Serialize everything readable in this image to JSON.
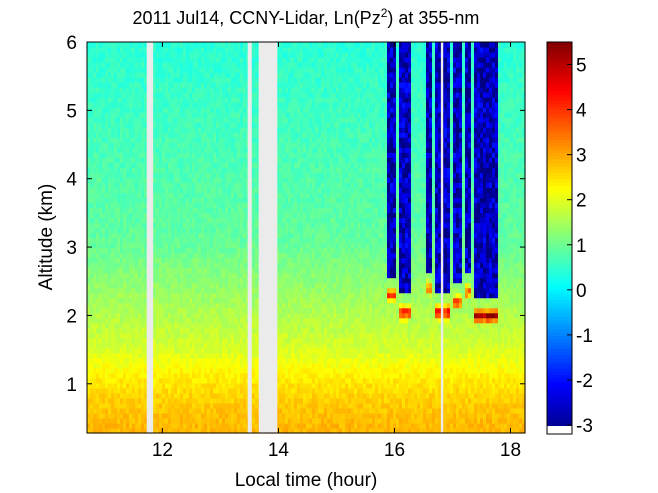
{
  "chart_data": {
    "type": "heatmap",
    "title": {
      "prefix": "2011 Jul14, CCNY-Lidar, Ln(Pz",
      "superscript": "2",
      "suffix": ") at 355-nm"
    },
    "xlabel": "Local time (hour)",
    "ylabel": "Altitude (km)",
    "xlim": [
      10.7,
      18.25
    ],
    "ylim": [
      0.28,
      6.0
    ],
    "x_ticks": [
      12,
      14,
      16,
      18
    ],
    "y_ticks": [
      1,
      2,
      3,
      4,
      5,
      6
    ],
    "colorbar": {
      "min": -3.2,
      "max": 5.5,
      "ticks": [
        -3,
        -2,
        -1,
        0,
        1,
        2,
        3,
        4,
        5
      ],
      "colormap": "jet",
      "nodata_color": "#ffffff"
    },
    "data_gaps_hours": [
      [
        11.73,
        11.84
      ],
      [
        13.47,
        13.54
      ],
      [
        13.66,
        13.98
      ],
      [
        16.8,
        16.84
      ]
    ],
    "nodata_color": "#ebebeb",
    "field": {
      "surface_value": 2.9,
      "free_troposphere_value": 0.9,
      "upper_value": 0.4,
      "boundary_layer_top_km": 1.5
    },
    "cloud_layers": [
      {
        "start": 15.85,
        "end": 16.05,
        "base_km": 2.3,
        "base_value": 4.0
      },
      {
        "start": 16.08,
        "end": 16.28,
        "base_km": 2.05,
        "base_value": 4.6
      },
      {
        "start": 16.55,
        "end": 16.65,
        "base_km": 2.4,
        "base_value": 3.6
      },
      {
        "start": 16.7,
        "end": 16.95,
        "base_km": 2.05,
        "base_value": 4.8
      },
      {
        "start": 17.0,
        "end": 17.15,
        "base_km": 2.2,
        "base_value": 4.2
      },
      {
        "start": 17.2,
        "end": 17.32,
        "base_km": 2.35,
        "base_value": 3.8
      },
      {
        "start": 17.38,
        "end": 17.78,
        "base_km": 2.0,
        "base_value": 5.2
      }
    ]
  }
}
